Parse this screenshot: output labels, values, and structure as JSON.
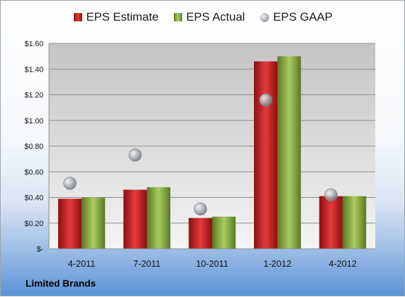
{
  "chart_data": {
    "type": "bar",
    "categories": [
      "4-2011",
      "7-2011",
      "10-2011",
      "1-2012",
      "4-2012"
    ],
    "series": [
      {
        "name": "EPS Estimate",
        "values": [
          0.39,
          0.46,
          0.24,
          1.46,
          0.41
        ],
        "color": "#c0191c"
      },
      {
        "name": "EPS Actual",
        "values": [
          0.4,
          0.48,
          0.25,
          1.5,
          0.41
        ],
        "color": "#8cb040"
      },
      {
        "name": "EPS GAAP",
        "values": [
          0.51,
          0.73,
          0.31,
          1.16,
          0.42
        ],
        "color": "#a6abb0",
        "marker": "circle"
      }
    ],
    "ylim": [
      0,
      1.6
    ],
    "yticks": [
      0,
      0.2,
      0.4,
      0.6,
      0.8,
      1.0,
      1.2,
      1.4,
      1.6
    ],
    "ytick_labels": [
      "$-",
      "$0.20",
      "$0.40",
      "$0.60",
      "$0.80",
      "$1.00",
      "$1.20",
      "$1.40",
      "$1.60"
    ],
    "grid": true,
    "legend_position": "top"
  },
  "legend": {
    "estimate": "EPS Estimate",
    "actual": "EPS Actual",
    "gaap": "EPS GAAP"
  },
  "footer": {
    "company": "Limited Brands"
  }
}
